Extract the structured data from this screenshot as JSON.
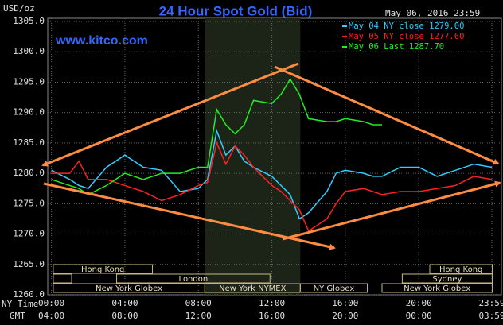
{
  "chart_data": {
    "type": "line",
    "title": "24 Hour Spot Gold (Bid)",
    "website": "www.kitco.com",
    "ylabel": "USD/oz",
    "timestamp": "May 06, 2016 23:59",
    "xlabel": "NY Time",
    "x2label": "GMT",
    "x": [
      0,
      1,
      1.5,
      2,
      3,
      4,
      5,
      6,
      7,
      8,
      8.5,
      9,
      9.5,
      10,
      10.5,
      11,
      12,
      12.5,
      13,
      13.5,
      14,
      15,
      15.5,
      16,
      17,
      17.5,
      18,
      19,
      20,
      21,
      22,
      23,
      23.98
    ],
    "series": [
      {
        "name": "May 04 NY close 1279.00",
        "color": "#33ccff",
        "values": [
          1280.5,
          1279,
          1278,
          1277.5,
          1281,
          1283,
          1281,
          1280.5,
          1277,
          1277.5,
          1279,
          1287,
          1283,
          1284.5,
          1282,
          1281,
          1279.5,
          1278,
          1276.5,
          1272.5,
          1273.5,
          1277,
          1280,
          1280.5,
          1280,
          1279.5,
          1279.5,
          1281,
          1281,
          1279.5,
          1280.5,
          1281.5,
          1281
        ]
      },
      {
        "name": "May 05 NY close 1277.60",
        "color": "#ff2020",
        "values": [
          1280,
          1280,
          1282,
          1279,
          1279,
          1278,
          1277,
          1275.5,
          1276.5,
          1278,
          1278.5,
          1285,
          1281.5,
          1284.5,
          1283,
          1281,
          1278,
          1277,
          1275.5,
          1274,
          1270.5,
          1272.5,
          1275,
          1277,
          1277.5,
          1277,
          1276.5,
          1277,
          1277,
          1277.5,
          1278,
          1279.5,
          1279
        ]
      },
      {
        "name": "May 06 Last 1287.70",
        "color": "#22ee22",
        "values": [
          1279,
          1278,
          1277.5,
          1276.5,
          1278,
          1280,
          1279,
          1280,
          1280,
          1281,
          1281,
          1290.5,
          1288,
          1286.5,
          1288,
          1292,
          1291.5,
          1293,
          1295.5,
          1293,
          1289,
          1288.5,
          1288.5,
          1289,
          1288.5,
          1288,
          1288,
          null,
          null,
          null,
          null,
          null,
          null
        ]
      }
    ],
    "xlim": [
      -0.2,
      24.5
    ],
    "xticks": [
      {
        "value": 0,
        "label": "00:00"
      },
      {
        "value": 4,
        "label": "04:00"
      },
      {
        "value": 8,
        "label": "08:00"
      },
      {
        "value": 12,
        "label": "12:00"
      },
      {
        "value": 16,
        "label": "16:00"
      },
      {
        "value": 20,
        "label": "20:00"
      },
      {
        "value": 23.98,
        "label": "23:59"
      }
    ],
    "x2ticklabels": [
      "04:00",
      "08:00",
      "12:00",
      "16:00",
      "20:00",
      "00:00",
      "03:59"
    ],
    "ylim": [
      1260,
      1305
    ],
    "yticks": [
      {
        "value": 1260,
        "label": "1260.0"
      },
      {
        "value": 1265,
        "label": "1265.0"
      },
      {
        "value": 1270,
        "label": "1270.0"
      },
      {
        "value": 1275,
        "label": "1275.0"
      },
      {
        "value": 1280,
        "label": "1280.0"
      },
      {
        "value": 1285,
        "label": "1285.0"
      },
      {
        "value": 1290,
        "label": "1290.0"
      },
      {
        "value": 1295,
        "label": "1295.0"
      },
      {
        "value": 1300,
        "label": "1300.0"
      },
      {
        "value": 1305,
        "label": "1305.0"
      }
    ],
    "grid": true,
    "shade": [
      8.35,
      13.55
    ],
    "sessions": [
      {
        "label": "Hong Kong",
        "row": 0,
        "start": 0.1,
        "end": 5.5
      },
      {
        "label": "Hong Kong",
        "row": 0,
        "start": 20.6,
        "end": 24
      },
      {
        "label": null,
        "row": 1,
        "start": 0.1,
        "end": 1.1
      },
      {
        "label": "London",
        "row": 1,
        "start": 3.55,
        "end": 11.9
      },
      {
        "label": "Sydney",
        "row": 1,
        "start": 19.1,
        "end": 24
      },
      {
        "label": "New York Globex",
        "row": 2,
        "start": 0.1,
        "end": 8.35
      },
      {
        "label": "New York NYMEX",
        "row": 2,
        "start": 8.35,
        "end": 13.55
      },
      {
        "label": "NY Globex",
        "row": 2,
        "start": 13.55,
        "end": 17.2
      },
      {
        "label": "New York Globex",
        "row": 2,
        "start": 18.0,
        "end": 24
      }
    ]
  }
}
